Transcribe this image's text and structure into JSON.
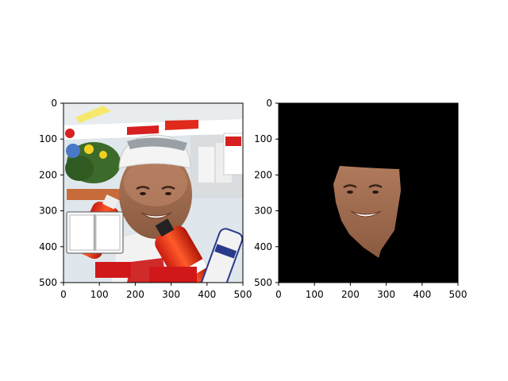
{
  "figure": {
    "background": "#ffffff",
    "axis_color": "#000000"
  },
  "chart_data": [
    {
      "type": "image",
      "content": "photo of smiling man wearing white cap with sunglasses, holding red sports bottles, flowers and crowd barrier in background; small open-book graphic overlaid at lower left",
      "xlim": [
        0,
        500
      ],
      "ylim": [
        500,
        0
      ],
      "x_ticks": [
        0,
        100,
        200,
        300,
        400,
        500
      ],
      "y_ticks": [
        0,
        100,
        200,
        300,
        400,
        500
      ],
      "x_tick_labels": [
        "0",
        "100",
        "200",
        "300",
        "400",
        "500"
      ],
      "y_tick_labels": [
        "0",
        "100",
        "200",
        "300",
        "400",
        "500"
      ],
      "title": "",
      "xlabel": "",
      "ylabel": ""
    },
    {
      "type": "image",
      "content": "segmentation mask result: black background with only the man's face region visible",
      "xlim": [
        0,
        500
      ],
      "ylim": [
        500,
        0
      ],
      "x_ticks": [
        0,
        100,
        200,
        300,
        400,
        500
      ],
      "y_ticks": [
        0,
        100,
        200,
        300,
        400,
        500
      ],
      "x_tick_labels": [
        "0",
        "100",
        "200",
        "300",
        "400",
        "500"
      ],
      "y_tick_labels": [
        "0",
        "100",
        "200",
        "300",
        "400",
        "500"
      ],
      "title": "",
      "xlabel": "",
      "ylabel": "",
      "background_color": "#000000"
    }
  ]
}
